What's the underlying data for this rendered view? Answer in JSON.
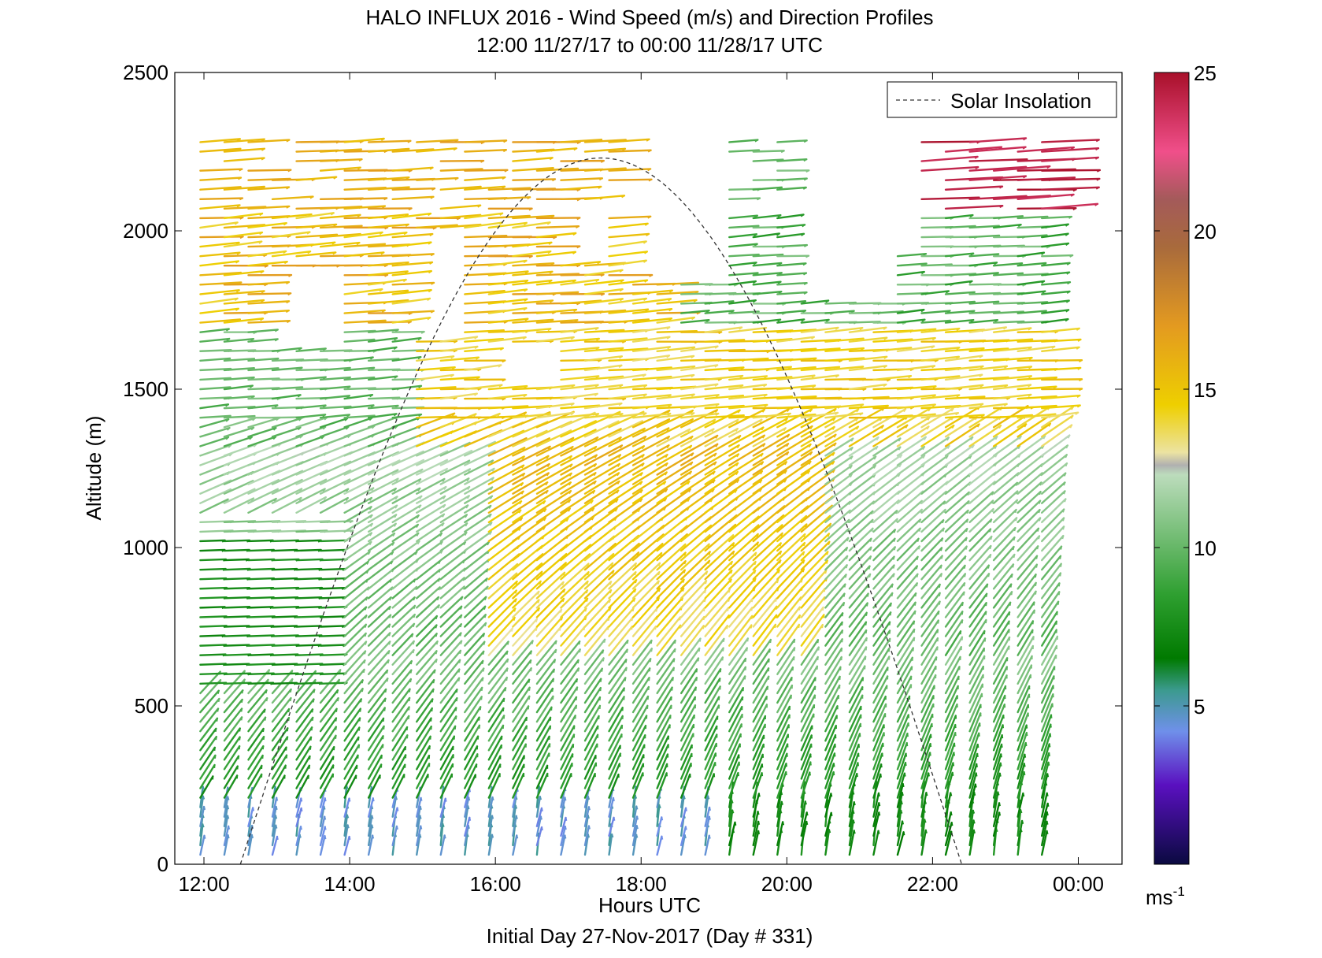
{
  "chart_data": {
    "type": "wind-barb-profile",
    "title": "HALO INFLUX 2016 - Wind Speed (m/s) and Direction Profiles",
    "subtitle": "12:00 11/27/17 to 00:00 11/28/17  UTC",
    "xlabel": "Hours UTC",
    "xlabel2": "Initial Day 27-Nov-2017 (Day # 331)",
    "ylabel": "Altitude (m)",
    "xlim": [
      11.6,
      24.6
    ],
    "ylim": [
      0,
      2500
    ],
    "x_ticks": [
      {
        "value": 12,
        "label": "12:00"
      },
      {
        "value": 14,
        "label": "14:00"
      },
      {
        "value": 16,
        "label": "16:00"
      },
      {
        "value": 18,
        "label": "18:00"
      },
      {
        "value": 20,
        "label": "20:00"
      },
      {
        "value": 22,
        "label": "22:00"
      },
      {
        "value": 24,
        "label": "00:00"
      }
    ],
    "y_ticks": [
      0,
      500,
      1000,
      1500,
      2000,
      2500
    ],
    "y_tick_labels": [
      "0",
      "500",
      "1000",
      "1500",
      "2000",
      "2500"
    ],
    "legend": {
      "label": "Solar Insolation",
      "style": "dashed",
      "color": "#333333",
      "position": "top-right"
    },
    "colorbar": {
      "range": [
        0,
        25
      ],
      "ticks": [
        5,
        10,
        15,
        20,
        25
      ],
      "tick_labels": [
        "5",
        "10",
        "15",
        "20",
        "25"
      ],
      "unit_label": "ms",
      "unit_exponent": "-1",
      "stops": [
        {
          "v": 0,
          "c": "#0a0a40"
        },
        {
          "v": 2.5,
          "c": "#5a10c0"
        },
        {
          "v": 4.2,
          "c": "#6f90ea"
        },
        {
          "v": 5.5,
          "c": "#3b9a8e"
        },
        {
          "v": 6.5,
          "c": "#007a00"
        },
        {
          "v": 8.5,
          "c": "#2e9f30"
        },
        {
          "v": 12.3,
          "c": "#bcdcbc"
        },
        {
          "v": 12.6,
          "c": "#b0b0b0"
        },
        {
          "v": 13.0,
          "c": "#ece3a2"
        },
        {
          "v": 14.5,
          "c": "#eecf00"
        },
        {
          "v": 17.0,
          "c": "#e39a20"
        },
        {
          "v": 19.5,
          "c": "#a86a3c"
        },
        {
          "v": 21.0,
          "c": "#a45a5a"
        },
        {
          "v": 22.5,
          "c": "#f04f8a"
        },
        {
          "v": 25.0,
          "c": "#a8102a"
        }
      ]
    },
    "solar_insolation": {
      "start_hour": 12.5,
      "end_hour": 22.4,
      "peak_altitude": 2230
    },
    "wind_profiles": {
      "time_start": 11.95,
      "time_end": 23.65,
      "time_step": 0.33,
      "altitude_step": 30,
      "altitude_max": 2300,
      "description_free": true,
      "speed_summary": [
        {
          "hour": 12,
          "low": 7,
          "mid": 8,
          "high": 14
        },
        {
          "hour": 14,
          "low": 6,
          "mid": 10,
          "high": 11
        },
        {
          "hour": 16,
          "low": 4,
          "mid": 10,
          "high": 15
        },
        {
          "hour": 18,
          "low": 4,
          "mid": 12,
          "high": 15
        },
        {
          "hour": 20,
          "low": 5,
          "mid": 11,
          "high": 11
        },
        {
          "hour": 22,
          "low": 6,
          "mid": 11,
          "high": 9
        },
        {
          "hour": 23.6,
          "low": 8,
          "mid": 12,
          "high": 8
        }
      ]
    }
  }
}
